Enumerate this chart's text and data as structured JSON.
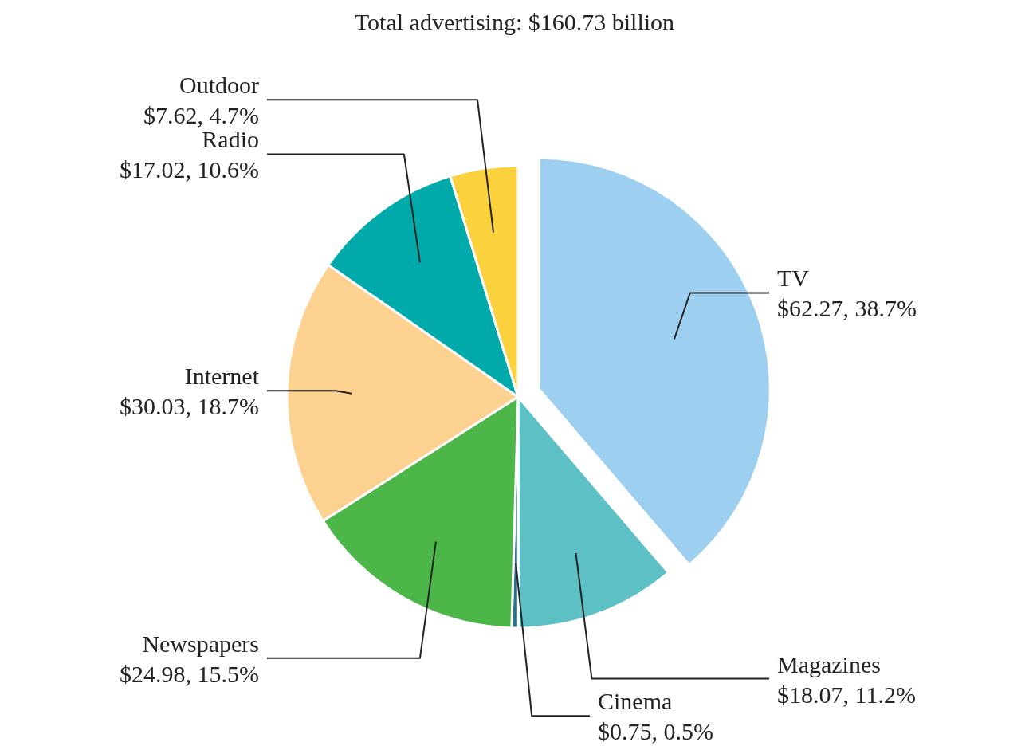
{
  "chart_data": {
    "type": "pie",
    "title": "Total advertising: $160.73 billion",
    "categories": [
      "TV",
      "Magazines",
      "Cinema",
      "Newspapers",
      "Internet",
      "Radio",
      "Outdoor"
    ],
    "values": [
      62.27,
      18.07,
      0.75,
      24.98,
      30.03,
      17.02,
      7.62
    ],
    "value_labels": [
      "$62.27, 38.7%",
      "$18.07, 11.2%",
      "$0.75, 0.5%",
      "$24.98, 15.5%",
      "$30.03, 18.7%",
      "$17.02, 10.6%",
      "$7.62, 4.7%"
    ],
    "colors": [
      "#9dd0f0",
      "#5cc0c5",
      "#2d6f8e",
      "#4cb748",
      "#fdd18f",
      "#00aaaa",
      "#fbd23d"
    ],
    "legend": false
  }
}
